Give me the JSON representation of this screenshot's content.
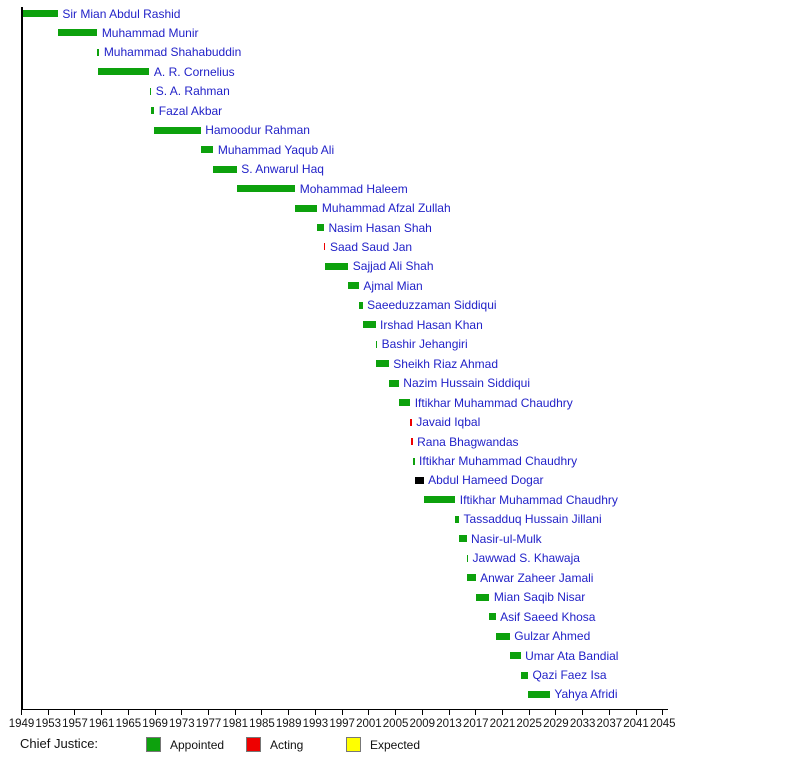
{
  "legend": {
    "label": "Chief Justice:",
    "items": [
      {
        "label": "Appointed",
        "status": "appointed",
        "color": "#0da10d"
      },
      {
        "label": "Acting",
        "status": "acting",
        "color": "#ee0000"
      },
      {
        "label": "Expected",
        "status": "expected",
        "color": "#ffff00"
      }
    ]
  },
  "colors": {
    "appointed": "#0da10d",
    "acting": "#ee0000",
    "expected": "#ffff00",
    "disputed": "#000000",
    "label_text": "#2222c8",
    "axis": "#000000",
    "tick_text": "#151515"
  },
  "chart_data": {
    "type": "bar",
    "variant": "horizontal-timeline-gantt",
    "title": "",
    "xlabel": "",
    "ylabel": "",
    "xlim": [
      1949,
      2047
    ],
    "grid": false,
    "legend_position": "bottom",
    "x_ticks": [
      1949,
      1953,
      1957,
      1961,
      1965,
      1969,
      1973,
      1977,
      1981,
      1985,
      1989,
      1993,
      1997,
      2001,
      2005,
      2009,
      2013,
      2017,
      2021,
      2025,
      2029,
      2033,
      2037,
      2041,
      2045
    ],
    "bars": [
      {
        "name": "Sir Mian Abdul Rashid",
        "status": "appointed",
        "start": 1949.15,
        "end": 1954.45
      },
      {
        "name": "Muhammad Munir",
        "status": "appointed",
        "start": 1954.45,
        "end": 1960.35
      },
      {
        "name": "Muhammad Shahabuddin",
        "status": "appointed",
        "start": 1960.3,
        "end": 1960.65
      },
      {
        "name": "A. R. Cornelius",
        "status": "appointed",
        "start": 1960.4,
        "end": 1968.15
      },
      {
        "name": "S. A. Rahman",
        "status": "appointed",
        "start": 1968.17,
        "end": 1968.42
      },
      {
        "name": "Fazal Akbar",
        "status": "appointed",
        "start": 1968.42,
        "end": 1968.88
      },
      {
        "name": "Hamoodur Rahman",
        "status": "appointed",
        "start": 1968.88,
        "end": 1975.83
      },
      {
        "name": "Muhammad Yaqub Ali",
        "status": "appointed",
        "start": 1975.83,
        "end": 1977.72
      },
      {
        "name": "S. Anwarul Haq",
        "status": "appointed",
        "start": 1977.72,
        "end": 1981.22
      },
      {
        "name": "Mohammad Haleem",
        "status": "appointed",
        "start": 1981.22,
        "end": 1989.98
      },
      {
        "name": "Muhammad Afzal Zullah",
        "status": "appointed",
        "start": 1990.0,
        "end": 1993.3
      },
      {
        "name": "Nasim Hasan Shah",
        "status": "appointed",
        "start": 1993.3,
        "end": 1994.28
      },
      {
        "name": "Saad Saud Jan",
        "status": "acting",
        "start": 1994.28,
        "end": 1994.45
      },
      {
        "name": "Sajjad Ali Shah",
        "status": "appointed",
        "start": 1994.42,
        "end": 1997.92
      },
      {
        "name": "Ajmal Mian",
        "status": "appointed",
        "start": 1997.92,
        "end": 1999.5
      },
      {
        "name": "Saeeduzzaman Siddiqui",
        "status": "appointed",
        "start": 1999.5,
        "end": 2000.07
      },
      {
        "name": "Irshad Hasan Khan",
        "status": "appointed",
        "start": 2000.07,
        "end": 2002.0
      },
      {
        "name": "Bashir Jehangiri",
        "status": "appointed",
        "start": 2002.02,
        "end": 2002.12
      },
      {
        "name": "Sheikh Riaz Ahmad",
        "status": "appointed",
        "start": 2002.12,
        "end": 2003.98
      },
      {
        "name": "Nazim Hussain Siddiqui",
        "status": "appointed",
        "start": 2003.98,
        "end": 2005.48
      },
      {
        "name": "Iftikhar Muhammad Chaudhry",
        "status": "appointed",
        "start": 2005.48,
        "end": 2007.19
      },
      {
        "name": "Javaid Iqbal",
        "status": "acting",
        "start": 2007.19,
        "end": 2007.33
      },
      {
        "name": "Rana Bhagwandas",
        "status": "acting",
        "start": 2007.3,
        "end": 2007.55
      },
      {
        "name": "Iftikhar Muhammad Chaudhry",
        "status": "appointed",
        "start": 2007.55,
        "end": 2007.84
      },
      {
        "name": "Abdul Hameed Dogar",
        "status": "disputed",
        "start": 2007.84,
        "end": 2009.2
      },
      {
        "name": "Iftikhar Muhammad Chaudhry",
        "status": "appointed",
        "start": 2009.2,
        "end": 2013.94
      },
      {
        "name": "Tassadduq Hussain Jillani",
        "status": "appointed",
        "start": 2013.94,
        "end": 2014.5
      },
      {
        "name": "Nasir-ul-Mulk",
        "status": "appointed",
        "start": 2014.5,
        "end": 2015.62
      },
      {
        "name": "Jawwad S. Khawaja",
        "status": "appointed",
        "start": 2015.62,
        "end": 2015.7
      },
      {
        "name": "Anwar Zaheer Jamali",
        "status": "appointed",
        "start": 2015.7,
        "end": 2016.98
      },
      {
        "name": "Mian Saqib Nisar",
        "status": "appointed",
        "start": 2016.98,
        "end": 2019.05
      },
      {
        "name": "Asif Saeed Khosa",
        "status": "appointed",
        "start": 2019.05,
        "end": 2019.97
      },
      {
        "name": "Gulzar Ahmed",
        "status": "appointed",
        "start": 2019.97,
        "end": 2022.09
      },
      {
        "name": "Umar Ata Bandial",
        "status": "appointed",
        "start": 2022.09,
        "end": 2023.71
      },
      {
        "name": "Qazi Faez Isa",
        "status": "appointed",
        "start": 2023.71,
        "end": 2024.82
      },
      {
        "name": "Yahya Afridi",
        "status": "appointed",
        "start": 2024.82,
        "end": 2028.1
      }
    ]
  }
}
